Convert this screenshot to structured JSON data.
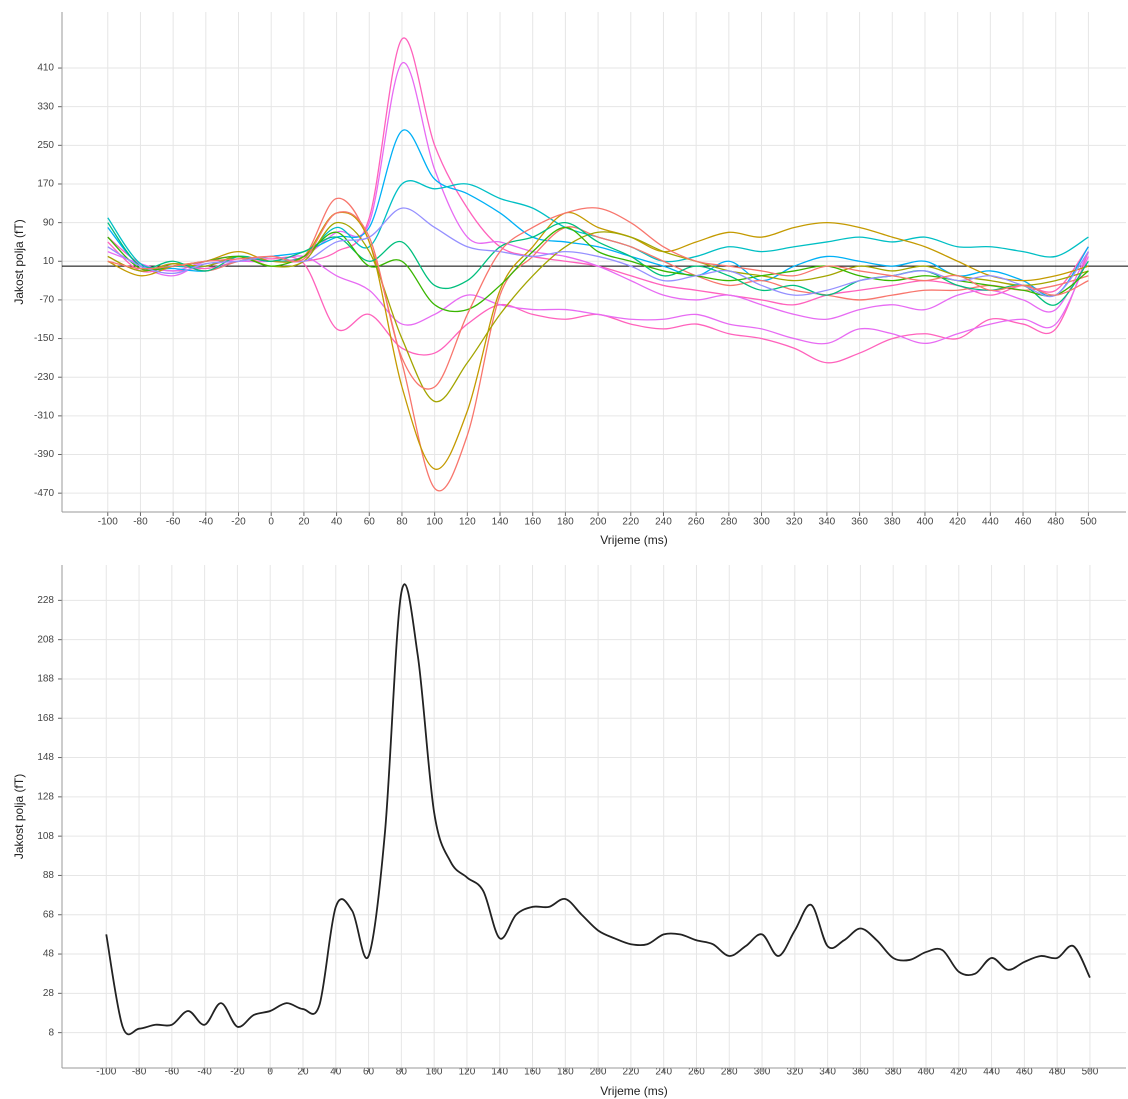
{
  "chart_data": [
    {
      "type": "line",
      "xlabel": "Vrijeme (ms)",
      "ylabel": "Jakost polja (fT)",
      "x": [
        -100,
        -80,
        -60,
        -40,
        -20,
        0,
        20,
        40,
        60,
        80,
        100,
        120,
        140,
        160,
        180,
        200,
        220,
        240,
        260,
        280,
        300,
        320,
        340,
        360,
        380,
        400,
        420,
        440,
        460,
        480,
        500
      ],
      "series": [
        {
          "color": "#FF62BC",
          "values": [
            60,
            5,
            -10,
            0,
            15,
            10,
            10,
            30,
            100,
            470,
            250,
            120,
            40,
            20,
            10,
            0,
            -20,
            -40,
            -50,
            -60,
            -70,
            -80,
            -60,
            -50,
            -40,
            -30,
            -40,
            -60,
            -40,
            -50,
            40
          ]
        },
        {
          "color": "#E76BF3",
          "values": [
            40,
            0,
            -20,
            10,
            20,
            10,
            20,
            70,
            90,
            420,
            200,
            60,
            50,
            30,
            20,
            0,
            -30,
            -60,
            -70,
            -60,
            -80,
            -100,
            -110,
            -90,
            -80,
            -90,
            -60,
            -50,
            -70,
            -90,
            30
          ]
        },
        {
          "color": "#FF62BC",
          "values": [
            50,
            -10,
            0,
            -5,
            10,
            15,
            5,
            -130,
            -100,
            -170,
            -180,
            -120,
            -80,
            -100,
            -110,
            -100,
            -120,
            -130,
            -120,
            -140,
            -150,
            -170,
            -200,
            -180,
            -150,
            -140,
            -150,
            -110,
            -120,
            -130,
            30
          ]
        },
        {
          "color": "#E76BF3",
          "values": [
            30,
            5,
            -10,
            10,
            10,
            10,
            20,
            -20,
            -50,
            -120,
            -100,
            -60,
            -80,
            -90,
            -90,
            -100,
            -110,
            -110,
            -100,
            -120,
            -130,
            -150,
            -160,
            -130,
            -140,
            -160,
            -140,
            -120,
            -110,
            -120,
            20
          ]
        },
        {
          "color": "#00B0F6",
          "values": [
            80,
            0,
            -5,
            -10,
            10,
            20,
            30,
            60,
            80,
            280,
            180,
            150,
            110,
            60,
            50,
            40,
            20,
            0,
            -20,
            10,
            -30,
            0,
            20,
            10,
            0,
            10,
            -20,
            -10,
            -30,
            -60,
            40
          ]
        },
        {
          "color": "#00BFC4",
          "values": [
            100,
            5,
            0,
            0,
            20,
            10,
            20,
            80,
            40,
            170,
            160,
            170,
            140,
            120,
            80,
            60,
            40,
            10,
            20,
            40,
            30,
            40,
            50,
            60,
            50,
            60,
            40,
            40,
            30,
            20,
            60
          ]
        },
        {
          "color": "#F8766D",
          "values": [
            20,
            -10,
            5,
            -10,
            10,
            20,
            20,
            140,
            50,
            -200,
            -460,
            -350,
            -60,
            20,
            80,
            60,
            40,
            10,
            -20,
            -40,
            -30,
            -50,
            -60,
            -70,
            -60,
            -50,
            -50,
            -40,
            -50,
            -40,
            -20
          ]
        },
        {
          "color": "#C49A00",
          "values": [
            10,
            -20,
            0,
            10,
            30,
            10,
            20,
            110,
            50,
            -250,
            -420,
            -300,
            -50,
            40,
            110,
            80,
            60,
            30,
            50,
            70,
            60,
            80,
            90,
            80,
            60,
            40,
            10,
            -20,
            -30,
            -20,
            0
          ]
        },
        {
          "color": "#A3A500",
          "values": [
            20,
            -10,
            5,
            0,
            20,
            0,
            10,
            90,
            30,
            -150,
            -280,
            -200,
            -100,
            -20,
            40,
            70,
            60,
            30,
            10,
            -10,
            -20,
            -30,
            -20,
            0,
            -10,
            0,
            -20,
            -30,
            -40,
            -30,
            -10
          ]
        },
        {
          "color": "#00BF7D",
          "values": [
            90,
            0,
            10,
            -10,
            20,
            10,
            30,
            60,
            10,
            50,
            -40,
            -30,
            40,
            60,
            90,
            50,
            20,
            -20,
            0,
            -20,
            -50,
            -40,
            -60,
            -30,
            -20,
            -10,
            -40,
            -50,
            -40,
            -80,
            10
          ]
        },
        {
          "color": "#39B600",
          "values": [
            60,
            -5,
            0,
            10,
            20,
            0,
            20,
            70,
            0,
            10,
            -80,
            -90,
            -40,
            30,
            80,
            30,
            10,
            -10,
            -20,
            -30,
            -20,
            -10,
            0,
            -20,
            -30,
            -20,
            -30,
            -40,
            -50,
            -60,
            -10
          ]
        },
        {
          "color": "#9590FF",
          "values": [
            40,
            0,
            -15,
            5,
            10,
            20,
            10,
            50,
            60,
            120,
            80,
            40,
            30,
            20,
            30,
            20,
            0,
            -30,
            -20,
            -10,
            -40,
            -60,
            -50,
            -30,
            -20,
            -10,
            -30,
            -20,
            -40,
            -60,
            30
          ]
        },
        {
          "color": "#F8766D",
          "values": [
            10,
            -5,
            0,
            10,
            15,
            20,
            15,
            110,
            60,
            -190,
            -250,
            -100,
            30,
            80,
            110,
            120,
            90,
            40,
            10,
            0,
            -10,
            -20,
            0,
            -10,
            -20,
            -30,
            -20,
            -50,
            -40,
            -60,
            -30
          ]
        }
      ],
      "hline": 0,
      "xlim": [
        -128,
        523
      ],
      "ylim": [
        -509,
        526
      ],
      "xticks": [
        -100,
        -80,
        -60,
        -40,
        -20,
        0,
        20,
        40,
        60,
        80,
        100,
        120,
        140,
        160,
        180,
        200,
        220,
        240,
        260,
        280,
        300,
        320,
        340,
        360,
        380,
        400,
        420,
        440,
        460,
        480,
        500
      ],
      "yticks": [
        -470,
        -390,
        -310,
        -230,
        -150,
        -70,
        10,
        90,
        170,
        250,
        330,
        410
      ],
      "grid": true
    },
    {
      "type": "line",
      "xlabel": "Vrijeme (ms)",
      "ylabel": "Jakost polja (fT)",
      "x": [
        -100,
        -90,
        -80,
        -70,
        -60,
        -50,
        -40,
        -30,
        -20,
        -10,
        0,
        10,
        20,
        30,
        40,
        50,
        60,
        70,
        80,
        90,
        100,
        110,
        120,
        130,
        140,
        150,
        160,
        170,
        180,
        190,
        200,
        210,
        220,
        230,
        240,
        250,
        260,
        270,
        280,
        290,
        300,
        310,
        320,
        330,
        340,
        350,
        360,
        370,
        380,
        390,
        400,
        410,
        420,
        430,
        440,
        450,
        460,
        470,
        480,
        490,
        500
      ],
      "series": [
        {
          "color": "#222222",
          "values": [
            58,
            11,
            10,
            12,
            12,
            19,
            12,
            23,
            11,
            17,
            19,
            23,
            20,
            22,
            72,
            70,
            47,
            110,
            232,
            200,
            120,
            95,
            87,
            80,
            56,
            68,
            72,
            72,
            76,
            68,
            60,
            56,
            53,
            53,
            58,
            58,
            55,
            53,
            47,
            52,
            58,
            47,
            60,
            73,
            52,
            55,
            61,
            55,
            46,
            45,
            49,
            50,
            39,
            38,
            46,
            40,
            44,
            47,
            46,
            52,
            36
          ]
        }
      ],
      "xlim": [
        -127,
        522
      ],
      "ylim": [
        -10,
        246
      ],
      "xticks": [
        -100,
        -80,
        -60,
        -40,
        -20,
        0,
        20,
        40,
        60,
        80,
        100,
        120,
        140,
        160,
        180,
        200,
        220,
        240,
        260,
        280,
        300,
        320,
        340,
        360,
        380,
        400,
        420,
        440,
        460,
        480,
        500
      ],
      "yticks": [
        8,
        28,
        48,
        68,
        88,
        108,
        128,
        148,
        168,
        188,
        208,
        228
      ],
      "grid": true
    }
  ]
}
